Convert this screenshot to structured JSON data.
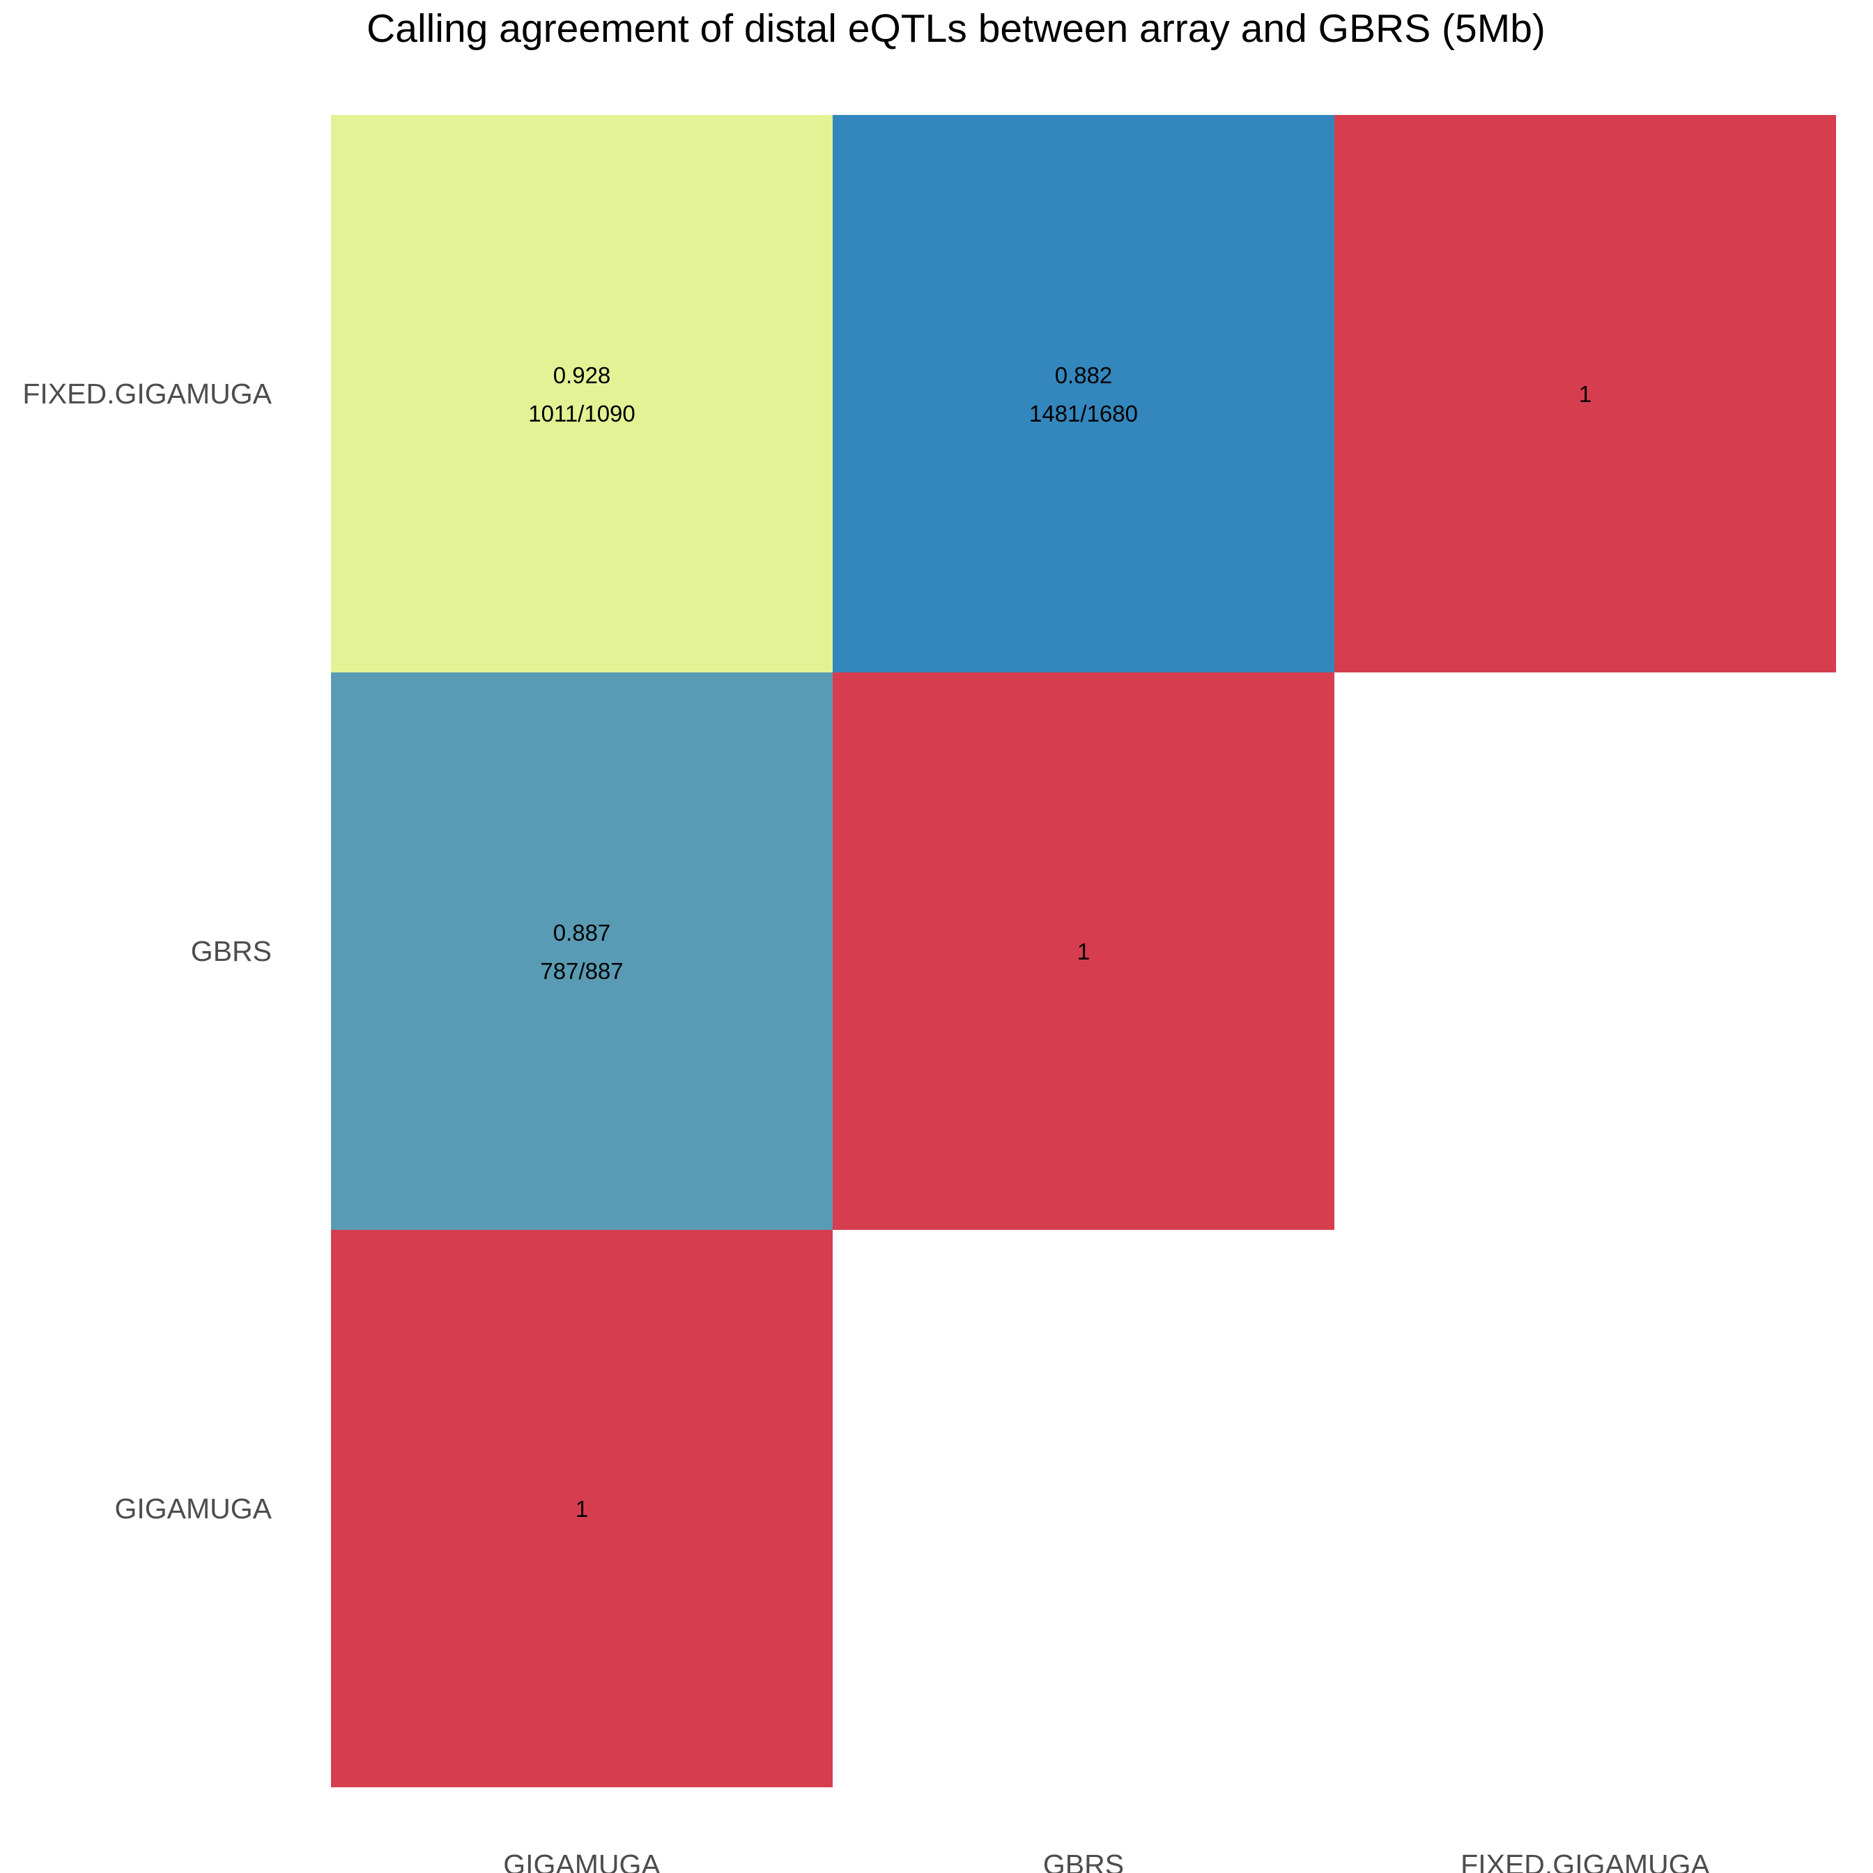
{
  "chart_data": {
    "type": "heatmap",
    "title": "Calling agreement of distal eQTLs between array and GBRS (5Mb)",
    "xlabel": "",
    "ylabel": "",
    "x_categories": [
      "GIGAMUGA",
      "GBRS",
      "FIXED.GIGAMUGA"
    ],
    "y_categories": [
      "GIGAMUGA",
      "GBRS",
      "FIXED.GIGAMUGA"
    ],
    "grid": false,
    "legend": "none",
    "cells": [
      {
        "x": "GIGAMUGA",
        "y": "GIGAMUGA",
        "value": 1,
        "label": "1",
        "sublabel": "",
        "color": "#d63e50"
      },
      {
        "x": "GIGAMUGA",
        "y": "GBRS",
        "value": 0.887,
        "label": "0.887",
        "sublabel": "787/887",
        "color": "#599bb4"
      },
      {
        "x": "GIGAMUGA",
        "y": "FIXED.GIGAMUGA",
        "value": 0.928,
        "label": "0.928",
        "sublabel": "1011/1090",
        "color": "#e2f294"
      },
      {
        "x": "GBRS",
        "y": "GBRS",
        "value": 1,
        "label": "1",
        "sublabel": "",
        "color": "#d63e50"
      },
      {
        "x": "GBRS",
        "y": "FIXED.GIGAMUGA",
        "value": 0.882,
        "label": "0.882",
        "sublabel": "1481/1680",
        "color": "#3387bc"
      },
      {
        "x": "FIXED.GIGAMUGA",
        "y": "FIXED.GIGAMUGA",
        "value": 1,
        "label": "1",
        "sublabel": "",
        "color": "#d63e50"
      }
    ]
  }
}
